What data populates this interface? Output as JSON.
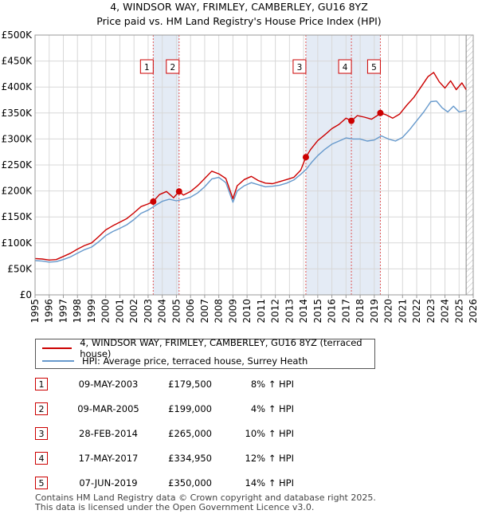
{
  "chart_data": {
    "type": "line",
    "title": "4, WINDSOR WAY, FRIMLEY, CAMBERLEY, GU16 8YZ",
    "subtitle": "Price paid vs. HM Land Registry's House Price Index (HPI)",
    "xlabel": "",
    "ylabel": "",
    "xlim": [
      1995,
      2026
    ],
    "ylim": [
      0,
      500000
    ],
    "y_ticks": [
      0,
      50000,
      100000,
      150000,
      200000,
      250000,
      300000,
      350000,
      400000,
      450000,
      500000
    ],
    "y_tick_labels": [
      "£0",
      "£50K",
      "£100K",
      "£150K",
      "£200K",
      "£250K",
      "£300K",
      "£350K",
      "£400K",
      "£450K",
      "£500K"
    ],
    "x_ticks": [
      1995,
      1996,
      1997,
      1998,
      1999,
      2000,
      2001,
      2002,
      2003,
      2004,
      2005,
      2006,
      2007,
      2008,
      2009,
      2010,
      2011,
      2012,
      2013,
      2014,
      2015,
      2016,
      2017,
      2018,
      2019,
      2020,
      2021,
      2022,
      2023,
      2024,
      2025,
      2026
    ],
    "x_tick_labels": [
      "1995",
      "1996",
      "1997",
      "1998",
      "1999",
      "2000",
      "2001",
      "2002",
      "2003",
      "2004",
      "2005",
      "2006",
      "2007",
      "2008",
      "2009",
      "2010",
      "2011",
      "2012",
      "2013",
      "2014",
      "2015",
      "2016",
      "2017",
      "2018",
      "2019",
      "2020",
      "2021",
      "2022",
      "2023",
      "2024",
      "2025",
      "2026"
    ],
    "grid": true,
    "shaded_ranges": [
      [
        2003.36,
        2005.19
      ],
      [
        2014.16,
        2019.43
      ]
    ],
    "future_hatch_start": 2025.5,
    "series": [
      {
        "name": "4, WINDSOR WAY, FRIMLEY, CAMBERLEY, GU16 8YZ (terraced house)",
        "color": "#cc0000",
        "x": [
          1995.0,
          1995.5,
          1996.0,
          1996.5,
          1997.0,
          1997.5,
          1998.0,
          1998.5,
          1999.0,
          1999.5,
          2000.0,
          2000.5,
          2001.0,
          2001.5,
          2002.0,
          2002.5,
          2003.0,
          2003.36,
          2003.8,
          2004.3,
          2004.8,
          2005.19,
          2005.5,
          2006.0,
          2006.5,
          2007.0,
          2007.5,
          2008.0,
          2008.5,
          2009.0,
          2009.3,
          2009.8,
          2010.3,
          2010.8,
          2011.3,
          2011.8,
          2012.3,
          2012.8,
          2013.3,
          2013.8,
          2014.16,
          2014.5,
          2015.0,
          2015.5,
          2016.0,
          2016.5,
          2017.0,
          2017.38,
          2017.8,
          2018.3,
          2018.8,
          2019.2,
          2019.43,
          2019.8,
          2020.3,
          2020.8,
          2021.3,
          2021.8,
          2022.3,
          2022.8,
          2023.2,
          2023.6,
          2024.0,
          2024.4,
          2024.8,
          2025.2,
          2025.5
        ],
        "values": [
          70000,
          69000,
          67000,
          68000,
          74000,
          80000,
          88000,
          95000,
          100000,
          112000,
          125000,
          133000,
          140000,
          147000,
          158000,
          170000,
          175000,
          179500,
          193000,
          199000,
          187000,
          199000,
          192000,
          199000,
          210000,
          224000,
          238000,
          233000,
          224000,
          185000,
          210000,
          222000,
          228000,
          220000,
          215000,
          214000,
          218000,
          222000,
          226000,
          240000,
          265000,
          280000,
          297000,
          308000,
          320000,
          328000,
          340000,
          334950,
          345000,
          342000,
          338000,
          345000,
          350000,
          347000,
          340000,
          348000,
          365000,
          380000,
          400000,
          420000,
          428000,
          410000,
          398000,
          412000,
          395000,
          408000,
          395000
        ]
      },
      {
        "name": "HPI: Average price, terraced house, Surrey Heath",
        "color": "#6699cc",
        "x": [
          1995.0,
          1995.5,
          1996.0,
          1996.5,
          1997.0,
          1997.5,
          1998.0,
          1998.5,
          1999.0,
          1999.5,
          2000.0,
          2000.5,
          2001.0,
          2001.5,
          2002.0,
          2002.5,
          2003.0,
          2003.5,
          2004.0,
          2004.5,
          2005.0,
          2005.5,
          2006.0,
          2006.5,
          2007.0,
          2007.5,
          2008.0,
          2008.5,
          2009.0,
          2009.3,
          2009.8,
          2010.3,
          2010.8,
          2011.3,
          2011.8,
          2012.3,
          2012.8,
          2013.3,
          2013.8,
          2014.2,
          2014.6,
          2015.0,
          2015.5,
          2016.0,
          2016.5,
          2017.0,
          2017.5,
          2018.0,
          2018.5,
          2019.0,
          2019.5,
          2020.0,
          2020.5,
          2021.0,
          2021.5,
          2022.0,
          2022.5,
          2023.0,
          2023.4,
          2023.8,
          2024.2,
          2024.6,
          2025.0,
          2025.5
        ],
        "values": [
          66000,
          65000,
          63000,
          64000,
          68000,
          73000,
          80000,
          87000,
          92000,
          102000,
          114000,
          122000,
          128000,
          135000,
          145000,
          157000,
          163000,
          172000,
          180000,
          184000,
          181000,
          184000,
          188000,
          196000,
          208000,
          223000,
          226000,
          216000,
          178000,
          200000,
          210000,
          216000,
          212000,
          208000,
          209000,
          211000,
          215000,
          221000,
          232000,
          242000,
          256000,
          268000,
          280000,
          290000,
          296000,
          302000,
          300000,
          300000,
          296000,
          298000,
          306000,
          300000,
          296000,
          303000,
          318000,
          335000,
          352000,
          372000,
          373000,
          360000,
          352000,
          363000,
          352000,
          355000
        ]
      }
    ],
    "transactions": [
      {
        "num": "1",
        "x": 2003.36,
        "price": 179500
      },
      {
        "num": "2",
        "x": 2005.19,
        "price": 199000
      },
      {
        "num": "3",
        "x": 2014.16,
        "price": 265000
      },
      {
        "num": "4",
        "x": 2017.38,
        "price": 334950
      },
      {
        "num": "5",
        "x": 2019.43,
        "price": 350000
      }
    ]
  },
  "legend": {
    "property_label": "4, WINDSOR WAY, FRIMLEY, CAMBERLEY, GU16 8YZ (terraced house)",
    "hpi_label": "HPI: Average price, terraced house, Surrey Heath",
    "property_color": "#cc0000",
    "hpi_color": "#6699cc"
  },
  "table": [
    {
      "num": "1",
      "date": "09-MAY-2003",
      "price": "£179,500",
      "hpi": "8% ↑ HPI"
    },
    {
      "num": "2",
      "date": "09-MAR-2005",
      "price": "£199,000",
      "hpi": "4% ↑ HPI"
    },
    {
      "num": "3",
      "date": "28-FEB-2014",
      "price": "£265,000",
      "hpi": "10% ↑ HPI"
    },
    {
      "num": "4",
      "date": "17-MAY-2017",
      "price": "£334,950",
      "hpi": "12% ↑ HPI"
    },
    {
      "num": "5",
      "date": "07-JUN-2019",
      "price": "£350,000",
      "hpi": "14% ↑ HPI"
    }
  ],
  "footer": {
    "line1": "Contains HM Land Registry data © Crown copyright and database right 2025.",
    "line2": "This data is licensed under the Open Government Licence v3.0."
  }
}
